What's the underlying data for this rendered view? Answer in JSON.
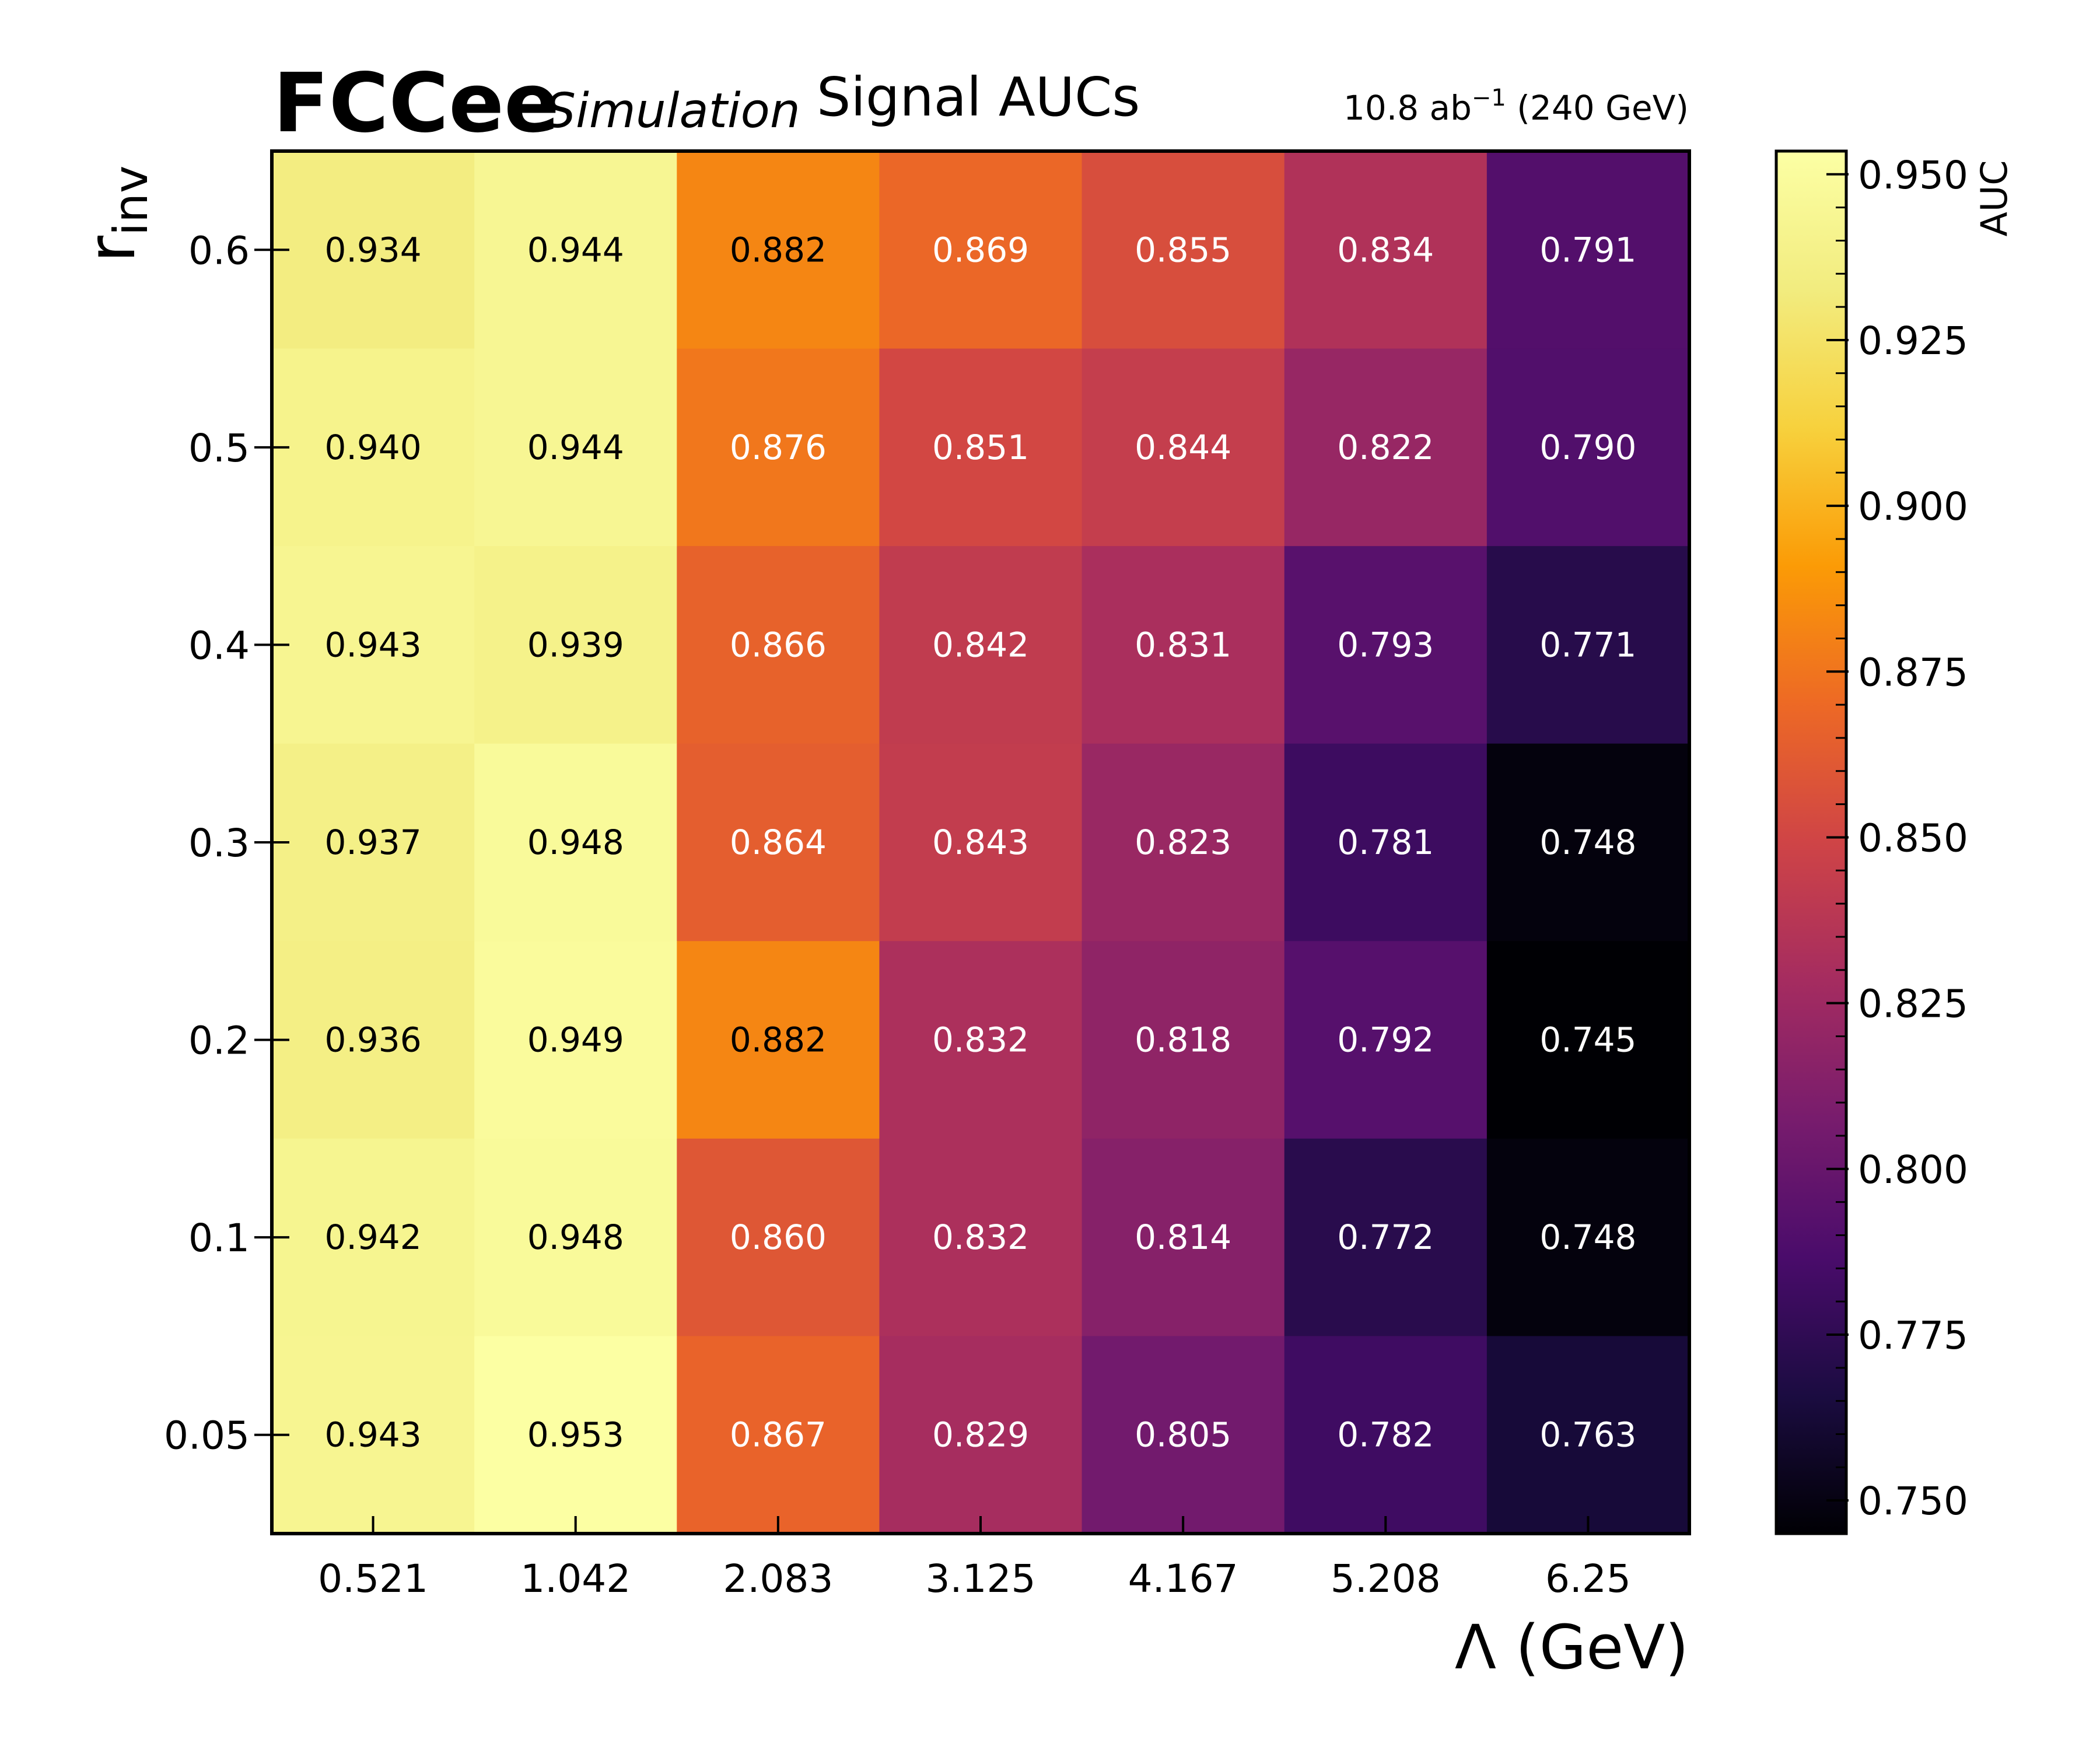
{
  "header": {
    "brand": "FCCee",
    "brand_sub": "Simulation",
    "title": "Signal AUCs",
    "lumi_value": "10.8 ab",
    "lumi_exp": "−1",
    "lumi_energy": " (240 GeV)"
  },
  "axes": {
    "y_main": "r",
    "y_sub": "inv",
    "x_label": "Λ (GeV)",
    "colorbar_label": "AUC"
  },
  "chart_data": {
    "type": "heatmap",
    "title": "Signal AUCs",
    "xlabel": "Λ (GeV)",
    "ylabel": "r_inv",
    "x_categories": [
      "0.521",
      "1.042",
      "2.083",
      "3.125",
      "4.167",
      "5.208",
      "6.25"
    ],
    "y_categories": [
      "0.6",
      "0.5",
      "0.4",
      "0.3",
      "0.2",
      "0.1",
      "0.05"
    ],
    "values": [
      [
        0.934,
        0.944,
        0.882,
        0.869,
        0.855,
        0.834,
        0.791
      ],
      [
        0.94,
        0.944,
        0.876,
        0.851,
        0.844,
        0.822,
        0.79
      ],
      [
        0.943,
        0.939,
        0.866,
        0.842,
        0.831,
        0.793,
        0.771
      ],
      [
        0.937,
        0.948,
        0.864,
        0.843,
        0.823,
        0.781,
        0.748
      ],
      [
        0.936,
        0.949,
        0.882,
        0.832,
        0.818,
        0.792,
        0.745
      ],
      [
        0.942,
        0.948,
        0.86,
        0.832,
        0.814,
        0.772,
        0.748
      ],
      [
        0.943,
        0.953,
        0.867,
        0.829,
        0.805,
        0.782,
        0.763
      ]
    ],
    "colorbar": {
      "label": "AUC",
      "range": [
        0.745,
        0.9535
      ],
      "ticks": [
        "0.750",
        "0.775",
        "0.800",
        "0.825",
        "0.850",
        "0.875",
        "0.900",
        "0.925",
        "0.950"
      ],
      "colormap": "inferno"
    },
    "grid": false
  }
}
